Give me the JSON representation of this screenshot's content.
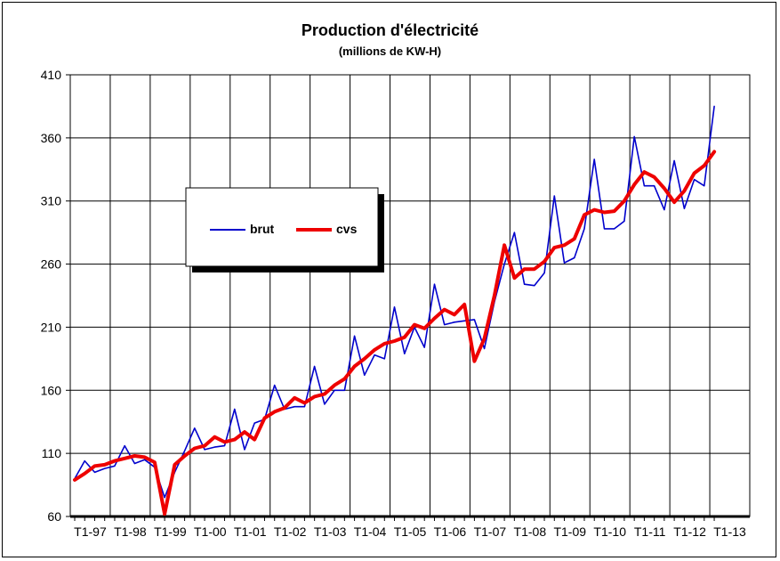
{
  "chart_data": {
    "type": "line",
    "title": "Production d'électricité",
    "subtitle": "(millions  de KW-H)",
    "xlabel": "",
    "ylabel": "",
    "ylim": [
      60,
      410
    ],
    "yticks": [
      60,
      110,
      160,
      210,
      260,
      310,
      360,
      410
    ],
    "xtick_labels": [
      "T1-97",
      "T1-98",
      "T1-99",
      "T1-00",
      "T1-01",
      "T1-02",
      "T1-03",
      "T1-04",
      "T1-05",
      "T1-06",
      "T1-07",
      "T1-08",
      "T1-09",
      "T1-10",
      "T1-11",
      "T1-12",
      "T1-13"
    ],
    "grid": true,
    "legend_placement": "upper-left",
    "series": [
      {
        "name": "brut",
        "color": "#0000cc",
        "values": [
          90,
          104,
          95,
          98,
          100,
          116,
          102,
          105,
          99,
          75,
          95,
          112,
          130,
          113,
          115,
          116,
          145,
          113,
          134,
          137,
          164,
          145,
          147,
          147,
          179,
          149,
          160,
          160,
          203,
          172,
          188,
          185,
          226,
          189,
          210,
          194,
          244,
          212,
          214,
          215,
          216,
          193,
          230,
          260,
          285,
          244,
          243,
          253,
          314,
          261,
          265,
          288,
          343,
          288,
          288,
          294,
          361,
          322,
          322,
          303,
          342,
          304,
          327,
          322,
          385
        ]
      },
      {
        "name": "cvs",
        "color": "#ee0000",
        "values": [
          89,
          94,
          100,
          101,
          104,
          106,
          108,
          107,
          103,
          62,
          101,
          108,
          114,
          116,
          123,
          119,
          121,
          127,
          121,
          138,
          143,
          146,
          154,
          150,
          155,
          157,
          164,
          169,
          179,
          185,
          192,
          197,
          199,
          202,
          212,
          209,
          217,
          224,
          220,
          228,
          183,
          201,
          235,
          275,
          249,
          256,
          256,
          262,
          273,
          275,
          280,
          299,
          303,
          301,
          302,
          310,
          323,
          333,
          329,
          320,
          309,
          318,
          332,
          338,
          349
        ]
      }
    ]
  }
}
